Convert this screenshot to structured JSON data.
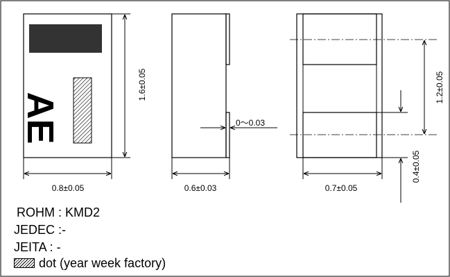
{
  "drawing": {
    "marking_text": "AE",
    "dimensions": {
      "front_width": "0.8±0.05",
      "front_height": "1.6±0.05",
      "side_width": "0.6±0.03",
      "side_step": "0～0.03",
      "bottom_width": "0.7±0.05",
      "pad_spacing": "1.2±0.05",
      "pad_length": "0.4±0.05"
    }
  },
  "info": {
    "rohm": "ROHM : KMD2",
    "jedec": "JEDEC :-",
    "jeita": "JEITA : -",
    "legend_text": "dot (year week factory)"
  }
}
